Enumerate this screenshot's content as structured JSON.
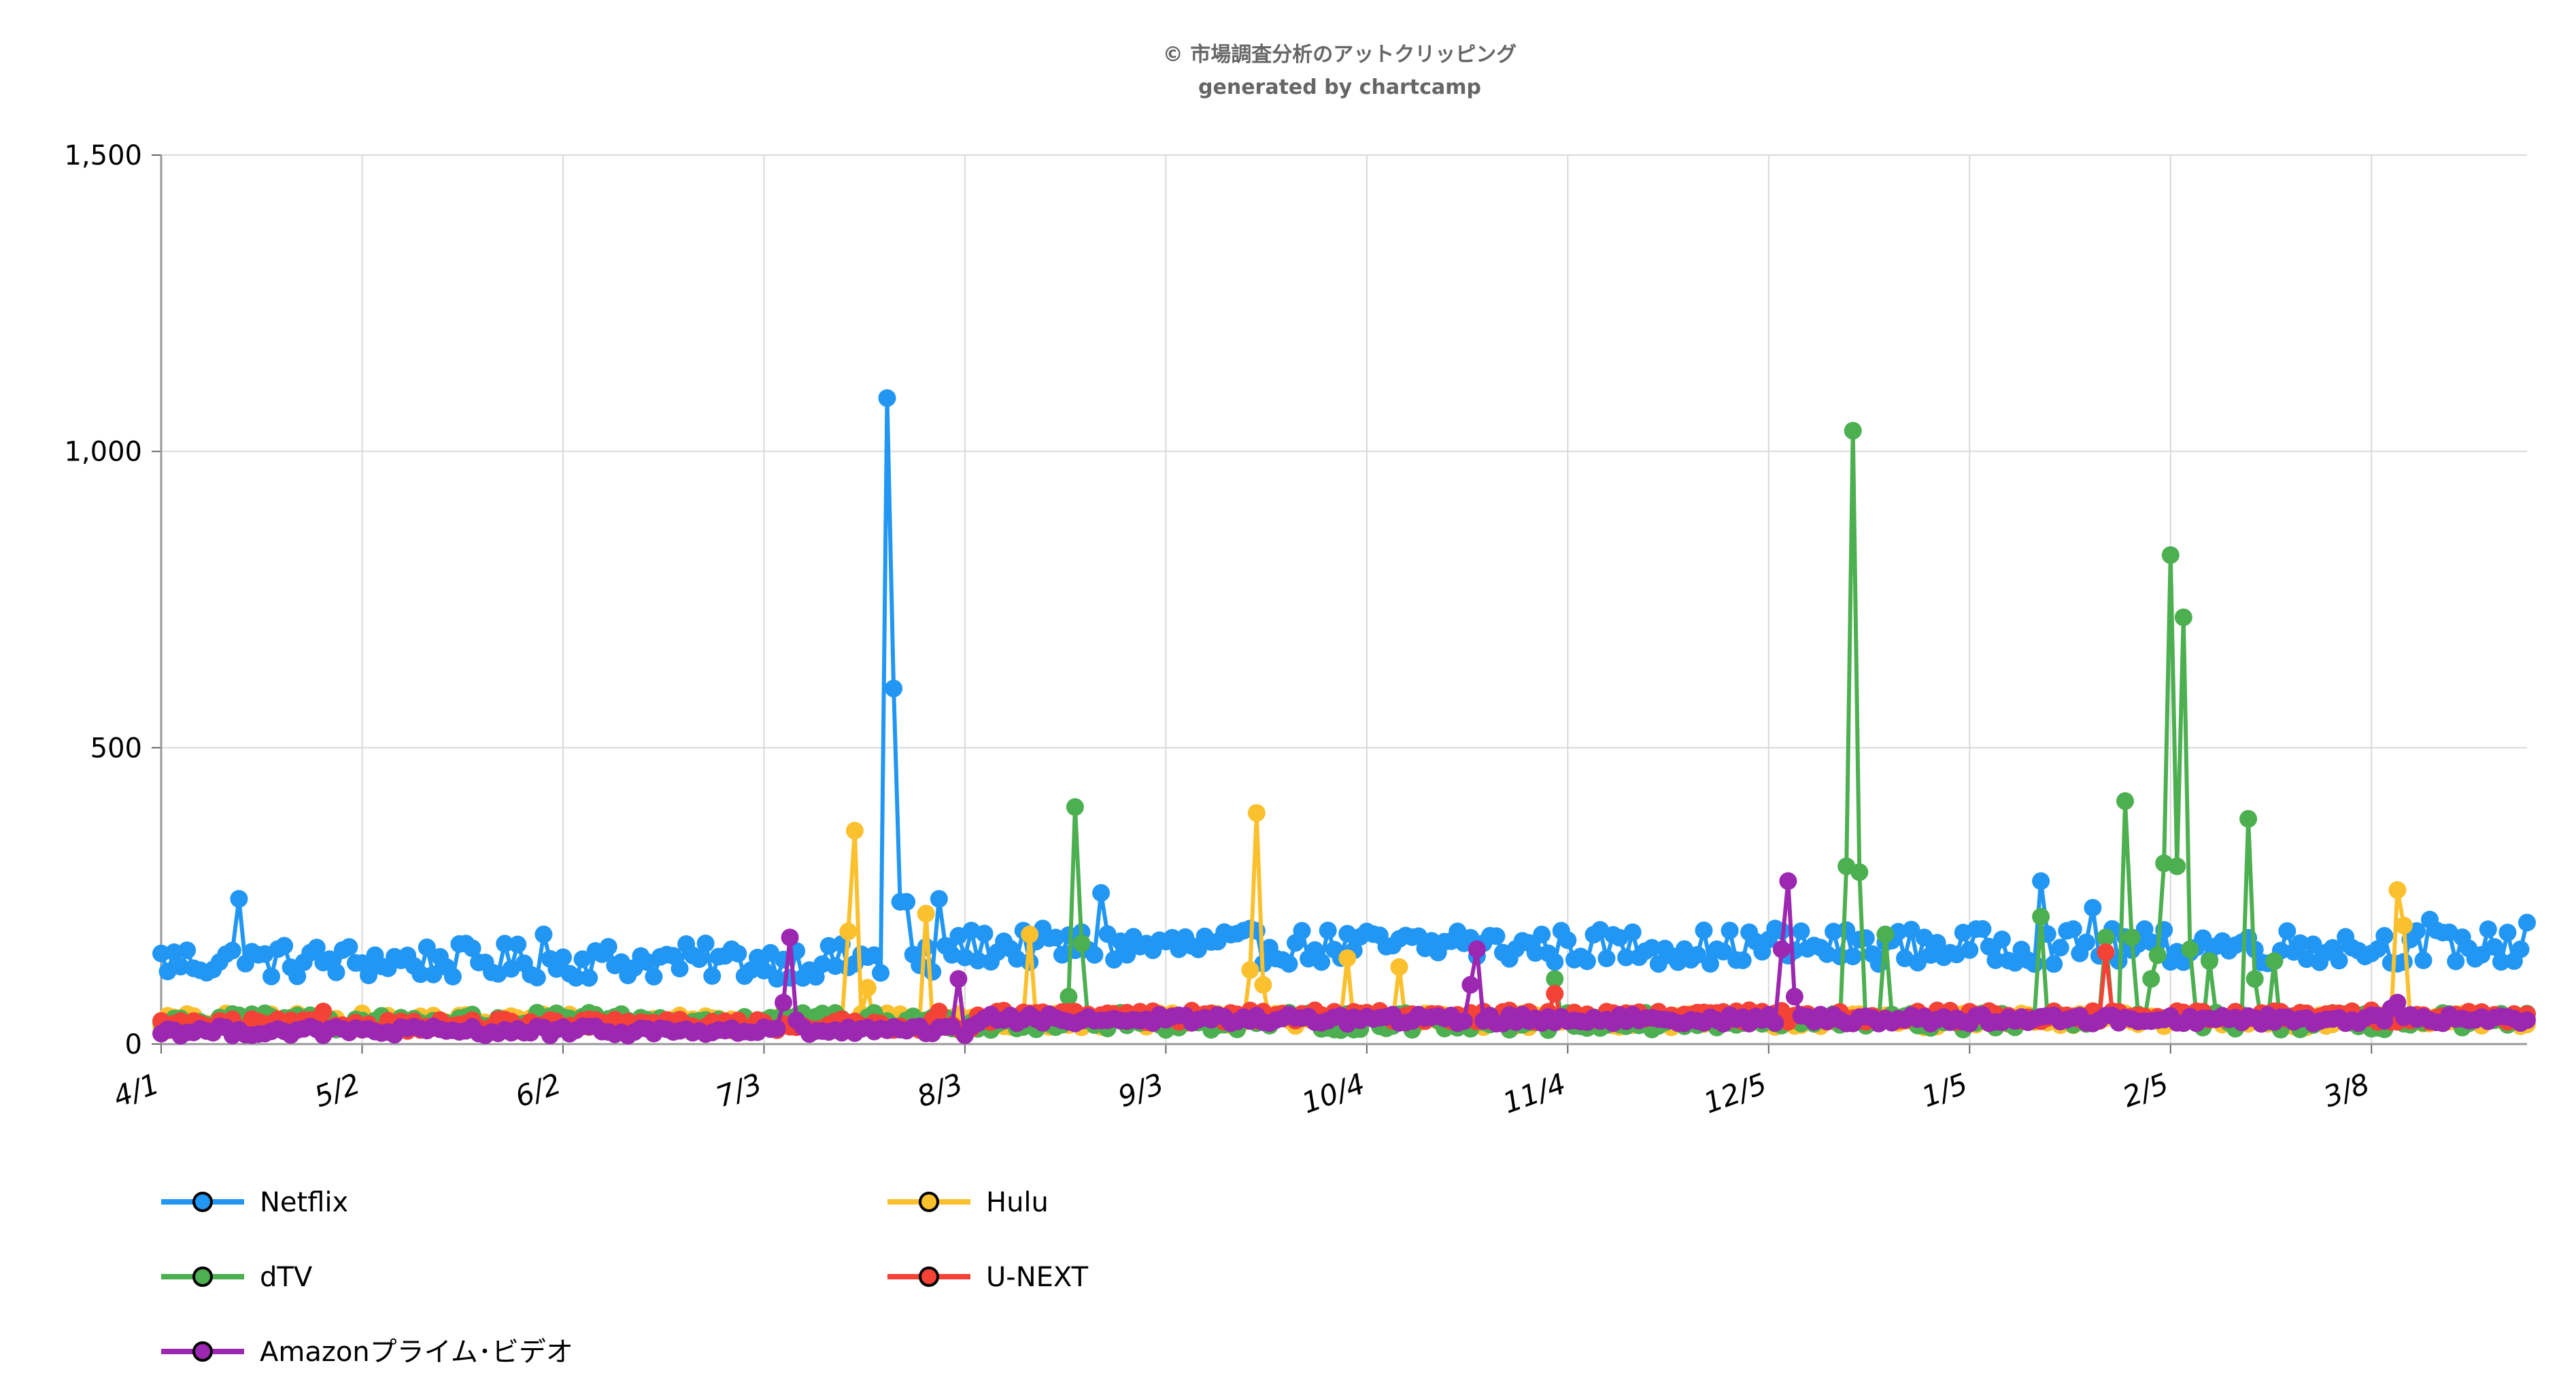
{
  "credit": {
    "line1": "© 市場調査分析のアットクリッピング",
    "line2": "generated by chartcamp"
  },
  "chart_data": {
    "type": "line",
    "title": "",
    "xlabel": "",
    "ylabel": "",
    "ylim": [
      0,
      1500
    ],
    "yticks": [
      0,
      500,
      1000,
      1500
    ],
    "ytick_labels": [
      "0",
      "500",
      "1,000",
      "1,500"
    ],
    "xtick_labels": [
      "4/1",
      "5/2",
      "6/2",
      "7/3",
      "8/3",
      "9/3",
      "10/4",
      "11/4",
      "12/5",
      "1/5",
      "2/5",
      "3/8"
    ],
    "xtick_day_index": [
      0,
      31,
      62,
      93,
      124,
      155,
      186,
      217,
      248,
      279,
      310,
      341
    ],
    "num_days": 366,
    "grid": true,
    "legend_position": "bottom",
    "series": [
      {
        "name": "Netflix",
        "color": "#2196f3",
        "base": 140,
        "amp": 30,
        "spikes": [
          [
            12,
            245
          ],
          [
            59,
            185
          ],
          [
            110,
            150
          ],
          [
            111,
            120
          ],
          [
            112,
            1090
          ],
          [
            113,
            600
          ],
          [
            114,
            240
          ],
          [
            115,
            240
          ],
          [
            120,
            245
          ],
          [
            145,
            255
          ],
          [
            200,
            190
          ],
          [
            240,
            160
          ],
          [
            249,
            195
          ],
          [
            290,
            275
          ],
          [
            298,
            230
          ],
          [
            350,
            210
          ],
          [
            365,
            205
          ]
        ]
      },
      {
        "name": "Hulu",
        "color": "#fbc02d",
        "base": 40,
        "amp": 12,
        "spikes": [
          [
            106,
            190
          ],
          [
            107,
            360
          ],
          [
            109,
            95
          ],
          [
            118,
            220
          ],
          [
            134,
            185
          ],
          [
            168,
            125
          ],
          [
            169,
            390
          ],
          [
            170,
            100
          ],
          [
            183,
            145
          ],
          [
            191,
            130
          ],
          [
            345,
            260
          ],
          [
            346,
            200
          ]
        ]
      },
      {
        "name": "dTV",
        "color": "#4caf50",
        "base": 38,
        "amp": 15,
        "spikes": [
          [
            140,
            80
          ],
          [
            141,
            400
          ],
          [
            142,
            170
          ],
          [
            215,
            110
          ],
          [
            260,
            300
          ],
          [
            261,
            1035
          ],
          [
            262,
            290
          ],
          [
            266,
            185
          ],
          [
            290,
            215
          ],
          [
            300,
            180
          ],
          [
            303,
            410
          ],
          [
            304,
            180
          ],
          [
            307,
            110
          ],
          [
            308,
            150
          ],
          [
            309,
            305
          ],
          [
            310,
            825
          ],
          [
            311,
            300
          ],
          [
            312,
            720
          ],
          [
            313,
            160
          ],
          [
            316,
            140
          ],
          [
            322,
            380
          ],
          [
            323,
            110
          ],
          [
            326,
            140
          ]
        ]
      },
      {
        "name": "U-NEXT",
        "color": "#f44336",
        "base": 32,
        "amp": 10,
        "spikes": [
          [
            25,
            55
          ],
          [
            120,
            55
          ],
          [
            215,
            85
          ],
          [
            300,
            155
          ]
        ]
      },
      {
        "name": "Amazonプライム･ビデオ",
        "color": "#9c27b0",
        "base": 22,
        "amp": 8,
        "spikes": [
          [
            96,
            70
          ],
          [
            97,
            180
          ],
          [
            98,
            40
          ],
          [
            123,
            110
          ],
          [
            202,
            100
          ],
          [
            203,
            160
          ],
          [
            250,
            160
          ],
          [
            251,
            275
          ],
          [
            252,
            80
          ],
          [
            344,
            60
          ],
          [
            345,
            70
          ]
        ]
      }
    ]
  },
  "legend": {
    "items": [
      {
        "label": "Netflix",
        "color": "#2196f3"
      },
      {
        "label": "Hulu",
        "color": "#fbc02d"
      },
      {
        "label": "dTV",
        "color": "#4caf50"
      },
      {
        "label": "U-NEXT",
        "color": "#f44336"
      },
      {
        "label": "Amazonプライム･ビデオ",
        "color": "#9c27b0"
      }
    ]
  }
}
